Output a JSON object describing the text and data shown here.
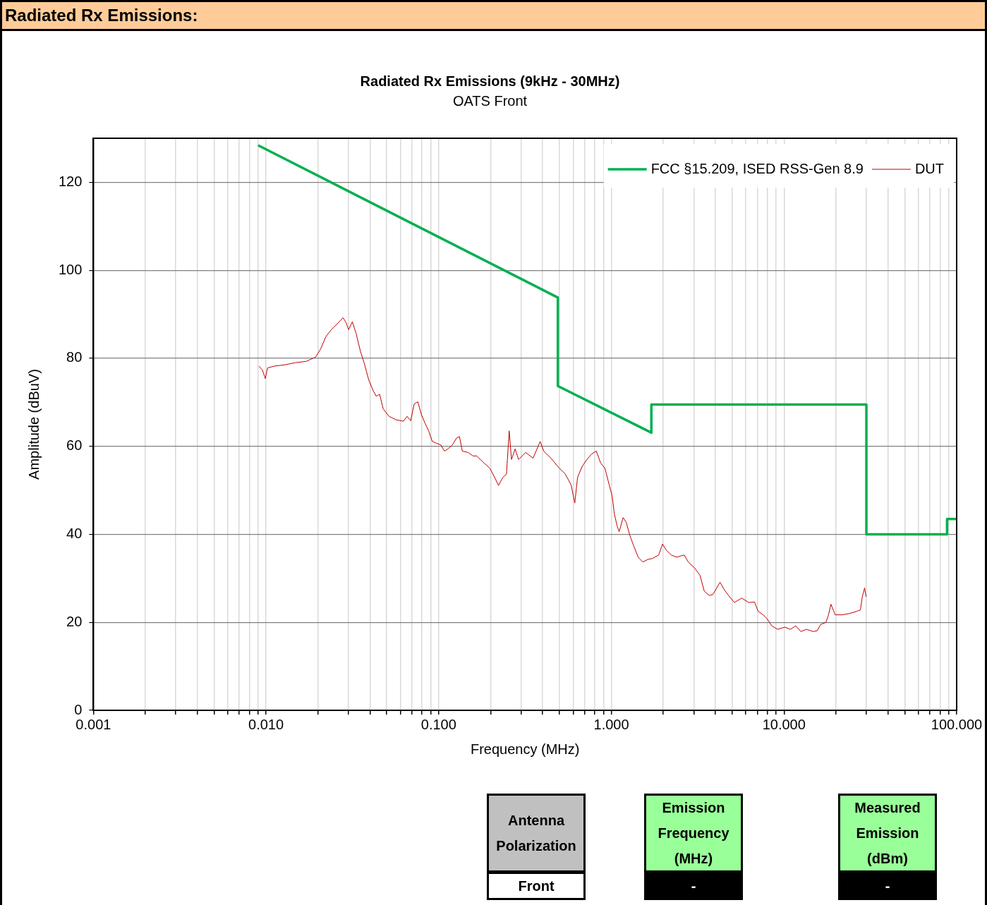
{
  "chart_data": [
    {
      "type": "line",
      "title": "Radiated Rx Emissions (9kHz - 30MHz)",
      "subtitle": "OATS Front",
      "xlabel": "Frequency (MHz)",
      "ylabel": "Amplitude (dBuV)",
      "annotations": [
        "Radiated Rx Emissions:"
      ],
      "log": "x",
      "xlim": [
        0.001,
        100
      ],
      "ylim": [
        0,
        130
      ],
      "xticks": [
        {
          "value": 0.001,
          "label": "0.001"
        },
        {
          "value": 0.002,
          "label": null
        },
        {
          "value": 0.003,
          "label": null
        },
        {
          "value": 0.004,
          "label": null
        },
        {
          "value": 0.005,
          "label": null
        },
        {
          "value": 0.006,
          "label": null
        },
        {
          "value": 0.007,
          "label": null
        },
        {
          "value": 0.008,
          "label": null
        },
        {
          "value": 0.009,
          "label": null
        },
        {
          "value": 0.01,
          "label": "0.010"
        },
        {
          "value": 0.02,
          "label": null
        },
        {
          "value": 0.03,
          "label": null
        },
        {
          "value": 0.04,
          "label": null
        },
        {
          "value": 0.05,
          "label": null
        },
        {
          "value": 0.06,
          "label": null
        },
        {
          "value": 0.07,
          "label": null
        },
        {
          "value": 0.08,
          "label": null
        },
        {
          "value": 0.09,
          "label": null
        },
        {
          "value": 0.1,
          "label": "0.100"
        },
        {
          "value": 0.2,
          "label": null
        },
        {
          "value": 0.3,
          "label": null
        },
        {
          "value": 0.4,
          "label": null
        },
        {
          "value": 0.5,
          "label": null
        },
        {
          "value": 0.6,
          "label": null
        },
        {
          "value": 0.7,
          "label": null
        },
        {
          "value": 0.8,
          "label": null
        },
        {
          "value": 0.9,
          "label": null
        },
        {
          "value": 1,
          "label": "1.000"
        },
        {
          "value": 2,
          "label": null
        },
        {
          "value": 3,
          "label": null
        },
        {
          "value": 4,
          "label": null
        },
        {
          "value": 5,
          "label": null
        },
        {
          "value": 6,
          "label": null
        },
        {
          "value": 7,
          "label": null
        },
        {
          "value": 8,
          "label": null
        },
        {
          "value": 9,
          "label": null
        },
        {
          "value": 10,
          "label": "10.000"
        },
        {
          "value": 20,
          "label": null
        },
        {
          "value": 30,
          "label": null
        },
        {
          "value": 40,
          "label": null
        },
        {
          "value": 50,
          "label": null
        },
        {
          "value": 60,
          "label": null
        },
        {
          "value": 70,
          "label": null
        },
        {
          "value": 80,
          "label": null
        },
        {
          "value": 90,
          "label": null
        },
        {
          "value": 100,
          "label": "100.000"
        }
      ],
      "yticks": [
        0,
        20,
        40,
        60,
        80,
        100,
        120
      ],
      "grid": true,
      "legend": "top right",
      "marker": "none",
      "line_style": "solid",
      "series": [
        {
          "name": "FCC §15.209, ISED RSS-Gen 8.9",
          "color": "#00b050",
          "x": [
            0.009,
            0.49,
            0.49,
            1.705,
            1.705,
            30,
            30,
            88,
            88,
            100
          ],
          "values": [
            128.4,
            93.8,
            73.7,
            63.1,
            69.5,
            69.5,
            40,
            40,
            43.5,
            43.5
          ]
        },
        {
          "name": "DUT",
          "color": "#c00000",
          "x": [
            0.00909,
            0.00953,
            0.0099,
            0.0102,
            0.0111,
            0.0128,
            0.0148,
            0.0171,
            0.0194,
            0.0207,
            0.0222,
            0.0239,
            0.0264,
            0.0279,
            0.029,
            0.0301,
            0.0316,
            0.0332,
            0.0352,
            0.0369,
            0.0394,
            0.0418,
            0.0434,
            0.0455,
            0.0477,
            0.0516,
            0.0568,
            0.0625,
            0.0656,
            0.0688,
            0.0721,
            0.0757,
            0.0794,
            0.0834,
            0.0875,
            0.0918,
            0.0982,
            0.103,
            0.108,
            0.113,
            0.12,
            0.127,
            0.132,
            0.137,
            0.148,
            0.158,
            0.166,
            0.183,
            0.198,
            0.211,
            0.222,
            0.235,
            0.247,
            0.256,
            0.264,
            0.277,
            0.29,
            0.319,
            0.352,
            0.387,
            0.406,
            0.447,
            0.492,
            0.541,
            0.585,
            0.614,
            0.637,
            0.675,
            0.721,
            0.772,
            0.818,
            0.867,
            0.918,
            0.972,
            1.01,
            1.04,
            1.08,
            1.11,
            1.17,
            1.22,
            1.28,
            1.35,
            1.43,
            1.52,
            1.63,
            1.73,
            1.88,
            1.98,
            2.07,
            2.22,
            2.39,
            2.64,
            2.79,
            3.04,
            3.26,
            3.45,
            3.69,
            3.87,
            4.26,
            4.51,
            4.77,
            5.16,
            5.68,
            6.25,
            6.75,
            7.08,
            7.57,
            7.94,
            8.49,
            9.18,
            10.1,
            10.9,
            11.7,
            12.5,
            13.5,
            14.8,
            15.6,
            16.3,
            17.5,
            18.1,
            18.7,
            19.8,
            21.8,
            23.9,
            26.4,
            27.7,
            28.4,
            29.3,
            29.9
          ],
          "values": [
            78.2,
            77.3,
            75.4,
            77.8,
            78.2,
            78.5,
            79.0,
            79.3,
            80.3,
            82.1,
            84.9,
            86.5,
            88.2,
            89.2,
            88.2,
            86.5,
            88.3,
            85.7,
            81.6,
            79.1,
            75.0,
            72.6,
            71.4,
            71.8,
            68.5,
            66.8,
            66.0,
            65.7,
            66.8,
            65.8,
            69.6,
            70.1,
            67.2,
            65.2,
            63.5,
            61.1,
            60.6,
            60.3,
            58.9,
            59.4,
            60.3,
            61.9,
            62.2,
            58.9,
            58.6,
            57.8,
            57.8,
            56.2,
            55.0,
            52.9,
            51.1,
            52.9,
            53.7,
            63.5,
            57.0,
            59.4,
            57.0,
            58.6,
            57.3,
            61.1,
            58.9,
            57.3,
            55.3,
            53.7,
            51.2,
            47.1,
            52.9,
            55.3,
            57.0,
            58.3,
            58.9,
            56.2,
            55.0,
            51.2,
            48.8,
            44.7,
            41.9,
            40.6,
            43.8,
            42.7,
            39.7,
            37.3,
            34.8,
            33.7,
            34.3,
            34.5,
            35.3,
            37.8,
            36.5,
            35.3,
            34.8,
            35.3,
            33.7,
            32.3,
            30.7,
            27.1,
            26.1,
            26.3,
            29.1,
            27.4,
            26.1,
            24.5,
            25.5,
            24.5,
            24.6,
            22.5,
            21.7,
            20.9,
            19.2,
            18.4,
            18.9,
            18.4,
            19.2,
            17.9,
            18.4,
            17.9,
            18.1,
            19.5,
            20.0,
            21.7,
            24.1,
            21.7,
            21.7,
            22.0,
            22.5,
            22.8,
            25.8,
            27.8,
            25.8
          ]
        }
      ]
    },
    {
      "type": "other",
      "categories": [
        "Antenna Polarization",
        "Emission Frequency (MHz)",
        "Measured Emission (dBm)"
      ],
      "value_labels": [
        "Front",
        "-",
        "-"
      ],
      "colors": [
        "#c0c0c0",
        "#99ff99",
        "#99ff99"
      ]
    }
  ]
}
